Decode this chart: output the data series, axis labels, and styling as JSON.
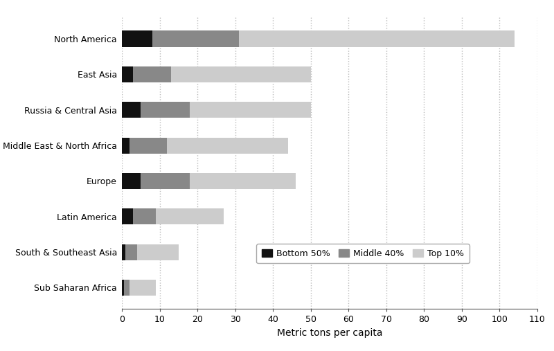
{
  "regions": [
    "North America",
    "East Asia",
    "Russia & Central Asia",
    "Middle East & North Africa",
    "Europe",
    "Latin America",
    "South & Southeast Asia",
    "Sub Saharan Africa"
  ],
  "bottom50": [
    8.0,
    3.0,
    5.0,
    2.0,
    5.0,
    3.0,
    1.0,
    0.5
  ],
  "middle40": [
    23.0,
    10.0,
    13.0,
    10.0,
    13.0,
    6.0,
    3.0,
    1.5
  ],
  "top10": [
    73.0,
    37.0,
    32.0,
    32.0,
    28.0,
    18.0,
    11.0,
    7.0
  ],
  "color_bottom50": "#111111",
  "color_middle40": "#888888",
  "color_top10": "#cccccc",
  "xlabel": "Metric tons per capita",
  "xlim": [
    0,
    110
  ],
  "xticks": [
    0,
    10,
    20,
    30,
    40,
    50,
    60,
    70,
    80,
    90,
    100,
    110
  ],
  "legend_labels": [
    "Bottom 50%",
    "Middle 40%",
    "Top 10%"
  ],
  "background_color": "#ffffff",
  "bar_height": 0.45,
  "grid_color": "#bbbbbb"
}
